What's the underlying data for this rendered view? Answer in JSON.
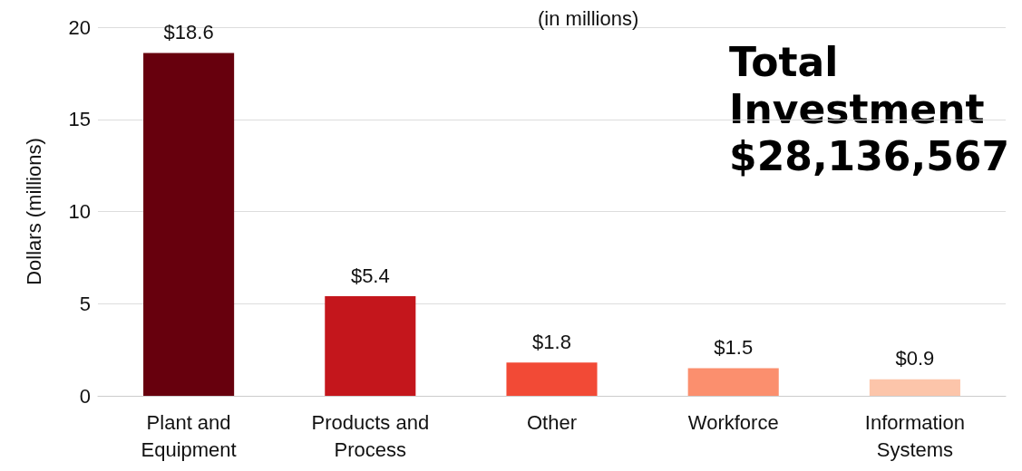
{
  "chart_data": {
    "type": "bar",
    "subtitle": "(in millions)",
    "ylabel": "Dollars (millions)",
    "categories": [
      "Plant and\nEquipment",
      "Products and\nProcess",
      "Other",
      "Workforce",
      "Information\nSystems"
    ],
    "values": [
      18.6,
      5.4,
      1.8,
      1.5,
      0.9
    ],
    "colors": [
      "#67000d",
      "#c4161c",
      "#f24a36",
      "#fb8f6e",
      "#fcc5aa"
    ],
    "value_labels": [
      "$18.6",
      "$5.4",
      "$1.8",
      "$1.5",
      "$0.9"
    ],
    "ylim": [
      0,
      20
    ],
    "yticks": [
      0,
      5,
      10,
      15,
      20
    ],
    "grid": "y",
    "annotations": [
      "Total\nInvestment\n$28,136,567"
    ]
  }
}
